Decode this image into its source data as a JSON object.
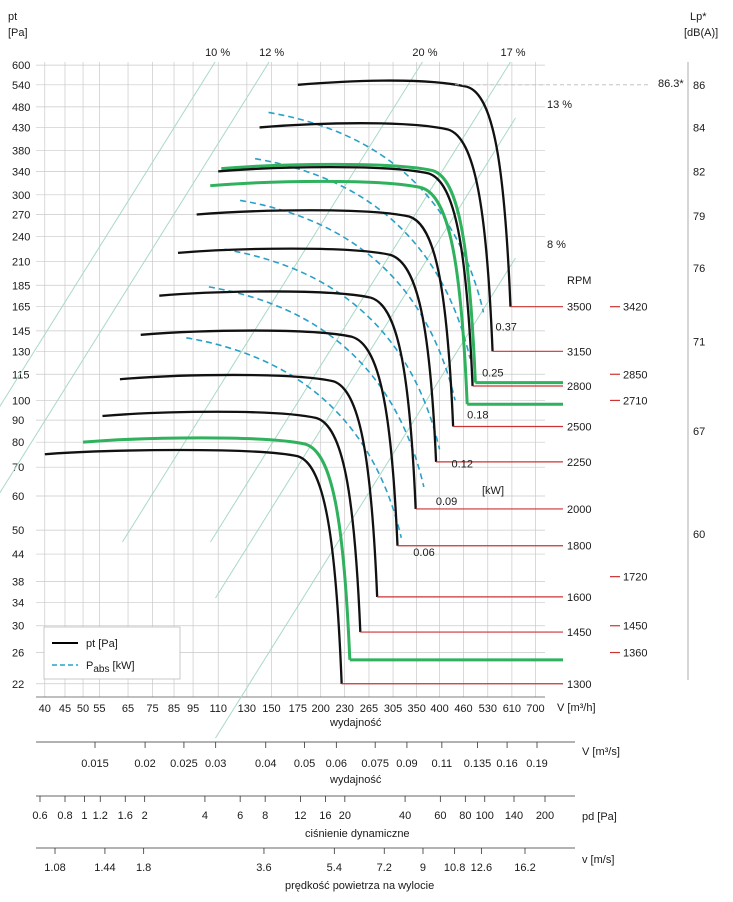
{
  "chart_data": {
    "type": "line",
    "title": "",
    "y_axis": {
      "label_line1": "pt",
      "label_line2": "[Pa]",
      "ticks": [
        22,
        26,
        30,
        34,
        38,
        44,
        50,
        60,
        70,
        80,
        90,
        100,
        115,
        130,
        145,
        165,
        185,
        210,
        240,
        270,
        300,
        340,
        380,
        430,
        480,
        540,
        600
      ],
      "ylim": [
        20,
        600
      ],
      "scale": "log"
    },
    "x_axis": {
      "label": "wydajność",
      "unit": "V [m³/h]",
      "ticks": [
        40,
        45,
        50,
        55,
        65,
        75,
        85,
        95,
        110,
        130,
        150,
        175,
        200,
        230,
        265,
        305,
        350,
        400,
        460,
        530,
        610,
        700
      ],
      "xlim": [
        38,
        740
      ],
      "scale": "log"
    },
    "secondary_axes": [
      {
        "unit": "V [m³/s]",
        "label": "wydajność",
        "ticks": [
          "0.015",
          "0.02",
          "0.025",
          "0.03",
          "0.04",
          "0.05",
          "0.06",
          "0.075",
          "0.09",
          "0.11",
          "0.135",
          "0.16",
          "0.19"
        ]
      },
      {
        "unit": "pd [Pa]",
        "label": "ciśnienie dynamiczne",
        "ticks": [
          "0.6",
          "0.8",
          "1",
          "1.2",
          "1.6",
          "2",
          "4",
          "6",
          "8",
          "12",
          "16",
          "20",
          "40",
          "60",
          "80",
          "100",
          "140",
          "200"
        ]
      },
      {
        "unit": "v [m/s]",
        "label": "prędkość powietrza na wylocie",
        "ticks": [
          "1.08",
          "1.44",
          "1.8",
          "3.6",
          "5.4",
          "7.2",
          "9",
          "10.8",
          "12.6",
          "16.2"
        ]
      }
    ],
    "noise_axis": {
      "label_line1": "Lp*",
      "label_line2": "[dB(A)]",
      "ticks": [
        {
          "label": "86",
          "pt": 540
        },
        {
          "label": "84",
          "pt": 430
        },
        {
          "label": "82",
          "pt": 340
        },
        {
          "label": "79",
          "pt": 268
        },
        {
          "label": "76",
          "pt": 203
        },
        {
          "label": "71",
          "pt": 137
        },
        {
          "label": "67",
          "pt": 85
        },
        {
          "label": "60",
          "pt": 49
        }
      ],
      "marker_label": "86.3*"
    },
    "rpm_header": "RPM",
    "speed_curves": [
      {
        "rpm": "3500",
        "x_start": 175,
        "y_start": 540,
        "knee": 470,
        "x_max": 605,
        "y_end": 165,
        "highlight": false
      },
      {
        "rpm": "3150",
        "x_start": 140,
        "y_start": 430,
        "knee": 420,
        "x_max": 545,
        "y_end": 130,
        "highlight": false
      },
      {
        "rpm": "2850",
        "x_start": 112,
        "y_start": 345,
        "knee": 385,
        "x_max": 493,
        "y_end": 110,
        "highlight": true
      },
      {
        "rpm": "2800",
        "x_start": 110,
        "y_start": 340,
        "knee": 375,
        "x_max": 485,
        "y_end": 108,
        "highlight": false
      },
      {
        "rpm": "2710",
        "x_start": 105,
        "y_start": 315,
        "knee": 360,
        "x_max": 470,
        "y_end": 98,
        "highlight": true
      },
      {
        "rpm": "2500",
        "x_start": 97,
        "y_start": 270,
        "knee": 335,
        "x_max": 433,
        "y_end": 87,
        "highlight": false
      },
      {
        "rpm": "2250",
        "x_start": 87,
        "y_start": 220,
        "knee": 300,
        "x_max": 392,
        "y_end": 72,
        "highlight": false
      },
      {
        "rpm": "2000",
        "x_start": 78,
        "y_start": 175,
        "knee": 268,
        "x_max": 348,
        "y_end": 56,
        "highlight": false
      },
      {
        "rpm": "1800",
        "x_start": 70,
        "y_start": 142,
        "knee": 240,
        "x_max": 313,
        "y_end": 46,
        "highlight": false
      },
      {
        "rpm": "1600",
        "x_start": 62,
        "y_start": 112,
        "knee": 215,
        "x_max": 278,
        "y_end": 35,
        "highlight": false
      },
      {
        "rpm": "1450",
        "x_start": 56,
        "y_start": 92,
        "knee": 195,
        "x_max": 252,
        "y_end": 29,
        "highlight": false
      },
      {
        "rpm": "1360",
        "x_start": 50,
        "y_start": 80,
        "knee": 183,
        "x_max": 237,
        "y_end": 25,
        "highlight": true
      },
      {
        "rpm": "1300",
        "x_start": 40,
        "y_start": 75,
        "knee": 175,
        "x_max": 226,
        "y_end": 22,
        "highlight": false
      }
    ],
    "right_rpm_labels": [
      {
        "rpm": "3420",
        "pt": 165
      },
      {
        "rpm": "2850",
        "pt": 115
      },
      {
        "rpm": "2710",
        "pt": 100
      },
      {
        "rpm": "1720",
        "pt": 39
      },
      {
        "rpm": "1450",
        "pt": 30
      },
      {
        "rpm": "1360",
        "pt": 26
      }
    ],
    "efficiency_lines": [
      {
        "label": "10 %",
        "x": 108
      },
      {
        "label": "12 %",
        "x": 148
      },
      {
        "label": "20 %",
        "x": 362
      },
      {
        "label": "17 %",
        "x": 605
      },
      {
        "label": "13 %",
        "x": 700
      },
      {
        "label": "8 %",
        "x": 700
      }
    ],
    "power_curves": [
      {
        "label": "0.37",
        "x": 517,
        "pt": 160
      },
      {
        "label": "0.25",
        "x": 478,
        "pt": 125
      },
      {
        "label": "0.18",
        "x": 438,
        "pt": 100
      },
      {
        "label": "0.12",
        "x": 400,
        "pt": 77
      },
      {
        "label": "0.09",
        "x": 365,
        "pt": 63
      },
      {
        "label": "0.06",
        "x": 320,
        "pt": 48
      }
    ],
    "power_unit": "[kW]",
    "legend": [
      {
        "symbol": "pt",
        "subscript": "t",
        "unit": "[Pa]",
        "style": "solid",
        "color": "#000000"
      },
      {
        "symbol": "P",
        "subscript": "abs",
        "unit": "[kW]",
        "style": "dashed",
        "color": "#2aa0c8"
      }
    ],
    "colors": {
      "curve": "#111111",
      "highlight": "#2fb15d",
      "power": "#2aa0c8",
      "rpm_line": "#cc3333",
      "grid": "#c9c9c9",
      "diagonal": "#a9d9c4"
    }
  }
}
